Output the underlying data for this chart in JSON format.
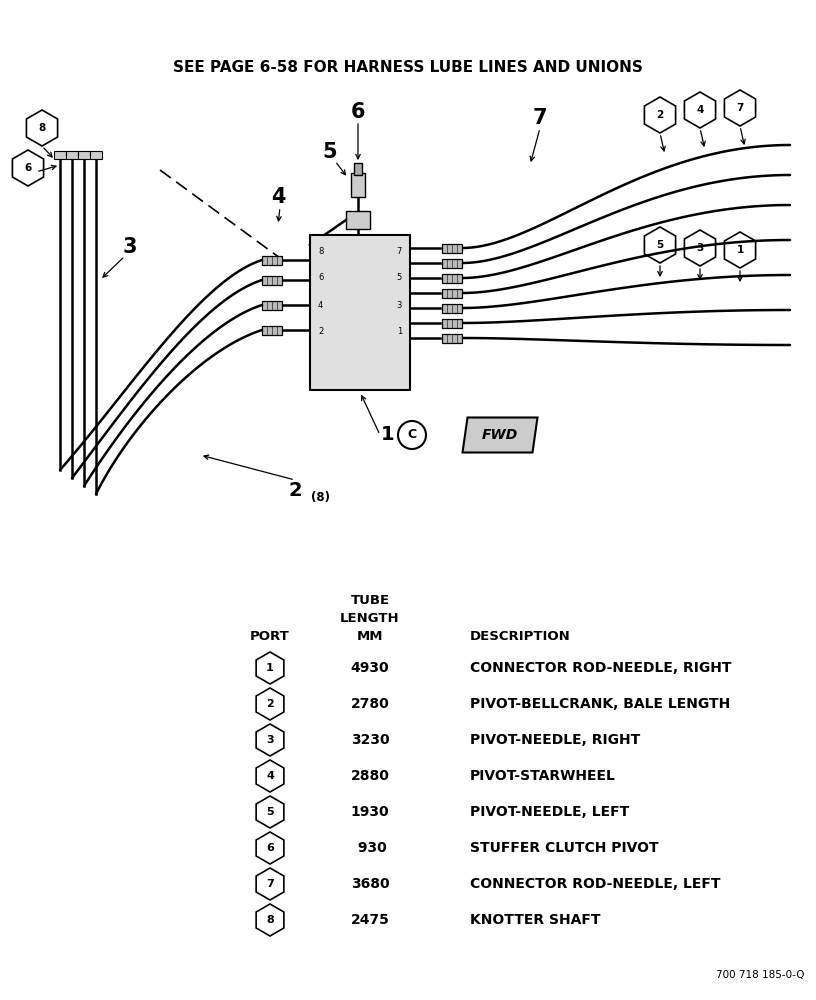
{
  "title_text": "SEE PAGE 6-58 FOR HARNESS LUBE LINES AND UNIONS",
  "bg_color": "#ffffff",
  "ports": [
    "1",
    "2",
    "3",
    "4",
    "5",
    "6",
    "7",
    "8"
  ],
  "lengths": [
    "4930",
    "2780",
    "3230",
    "2880",
    "1930",
    " 930",
    "3680",
    "2475"
  ],
  "descriptions": [
    "CONNECTOR ROD-NEEDLE, RIGHT",
    "PIVOT-BELLCRANK, BALE LENGTH",
    "PIVOT-NEEDLE, RIGHT",
    "PIVOT-STARWHEEL",
    "PIVOT-NEEDLE, LEFT",
    "STUFFER CLUTCH PIVOT",
    "CONNECTOR ROD-NEEDLE, LEFT",
    "KNOTTER SHAFT"
  ],
  "footer_text": "700 718 185-0-Q"
}
